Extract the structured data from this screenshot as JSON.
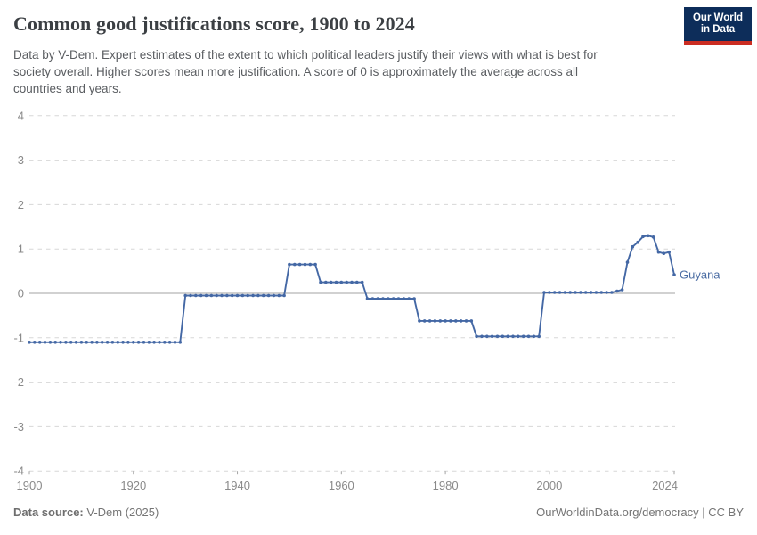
{
  "header": {
    "title": "Common good justifications score, 1900 to 2024",
    "logo": {
      "line1": "Our World",
      "line2": "in Data"
    }
  },
  "subtitle": {
    "lines": [
      "Data by V-Dem. Expert estimates of the extent to which political leaders justify their views with what is best for",
      "society overall. Higher scores mean more justification. A score of 0 is approximately the average across all",
      "countries and years."
    ]
  },
  "chart_data": {
    "type": "line",
    "title": "Common good justifications score, 1900 to 2024",
    "entity_label": "Guyana",
    "x_start": 1900,
    "x_end": 2024,
    "xlabel": "",
    "ylabel": "",
    "ylim": [
      -4,
      4
    ],
    "yticks": [
      4,
      3,
      2,
      1,
      0,
      -1,
      -2,
      -3,
      -4
    ],
    "xticks": [
      1900,
      1920,
      1940,
      1960,
      1980,
      2000,
      2024
    ],
    "grid": true,
    "legend_position": "end-of-line",
    "values": [
      -1.1,
      -1.1,
      -1.1,
      -1.1,
      -1.1,
      -1.1,
      -1.1,
      -1.1,
      -1.1,
      -1.1,
      -1.1,
      -1.1,
      -1.1,
      -1.1,
      -1.1,
      -1.1,
      -1.1,
      -1.1,
      -1.1,
      -1.1,
      -1.1,
      -1.1,
      -1.1,
      -1.1,
      -1.1,
      -1.1,
      -1.1,
      -1.1,
      -1.1,
      -1.1,
      -0.05,
      -0.05,
      -0.05,
      -0.05,
      -0.05,
      -0.05,
      -0.05,
      -0.05,
      -0.05,
      -0.05,
      -0.05,
      -0.05,
      -0.05,
      -0.05,
      -0.05,
      -0.05,
      -0.05,
      -0.05,
      -0.05,
      -0.05,
      0.65,
      0.65,
      0.65,
      0.65,
      0.65,
      0.65,
      0.25,
      0.25,
      0.25,
      0.25,
      0.25,
      0.25,
      0.25,
      0.25,
      0.25,
      -0.12,
      -0.12,
      -0.12,
      -0.12,
      -0.12,
      -0.12,
      -0.12,
      -0.12,
      -0.12,
      -0.12,
      -0.62,
      -0.62,
      -0.62,
      -0.62,
      -0.62,
      -0.62,
      -0.62,
      -0.62,
      -0.62,
      -0.62,
      -0.62,
      -0.97,
      -0.97,
      -0.97,
      -0.97,
      -0.97,
      -0.97,
      -0.97,
      -0.97,
      -0.97,
      -0.97,
      -0.97,
      -0.97,
      -0.97,
      0.02,
      0.02,
      0.02,
      0.02,
      0.02,
      0.02,
      0.02,
      0.02,
      0.02,
      0.02,
      0.02,
      0.02,
      0.02,
      0.02,
      0.05,
      0.08,
      0.7,
      1.05,
      1.15,
      1.28,
      1.3,
      1.27,
      0.93,
      0.9,
      0.93,
      0.42
    ]
  },
  "footer": {
    "source_label": "Data source:",
    "source_value": " V-Dem (2025)",
    "credit": "OurWorldinData.org/democracy | CC BY"
  },
  "colors": {
    "line": "#4468a5",
    "entity_label": "#4a6ca3",
    "grid": "#d7d7d7",
    "zero_line": "#a3a3a3",
    "axis_tick": "#a3a3a3",
    "axis_text": "#8a8a8a",
    "title_text": "#3b3f43",
    "subtitle_text": "#5a5d61",
    "footer_text": "#757575",
    "logo_bg": "#0d2d5a",
    "logo_red": "#cb2d22"
  }
}
